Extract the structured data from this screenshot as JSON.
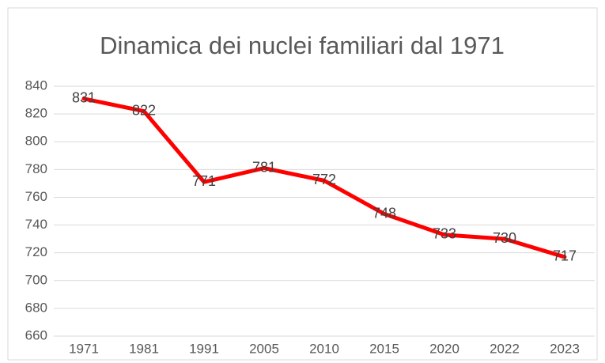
{
  "chart_data": {
    "type": "line",
    "title": "Dinamica dei nuclei familiari dal 1971",
    "categories": [
      "1971",
      "1981",
      "1991",
      "2005",
      "2010",
      "2015",
      "2020",
      "2022",
      "2023"
    ],
    "values": [
      831,
      822,
      771,
      781,
      772,
      748,
      733,
      730,
      717
    ],
    "color": "#ff0000",
    "ylim": [
      660,
      840
    ],
    "yticks": [
      660,
      680,
      700,
      720,
      740,
      760,
      780,
      800,
      820,
      840
    ],
    "grid": true,
    "data_labels": true
  }
}
